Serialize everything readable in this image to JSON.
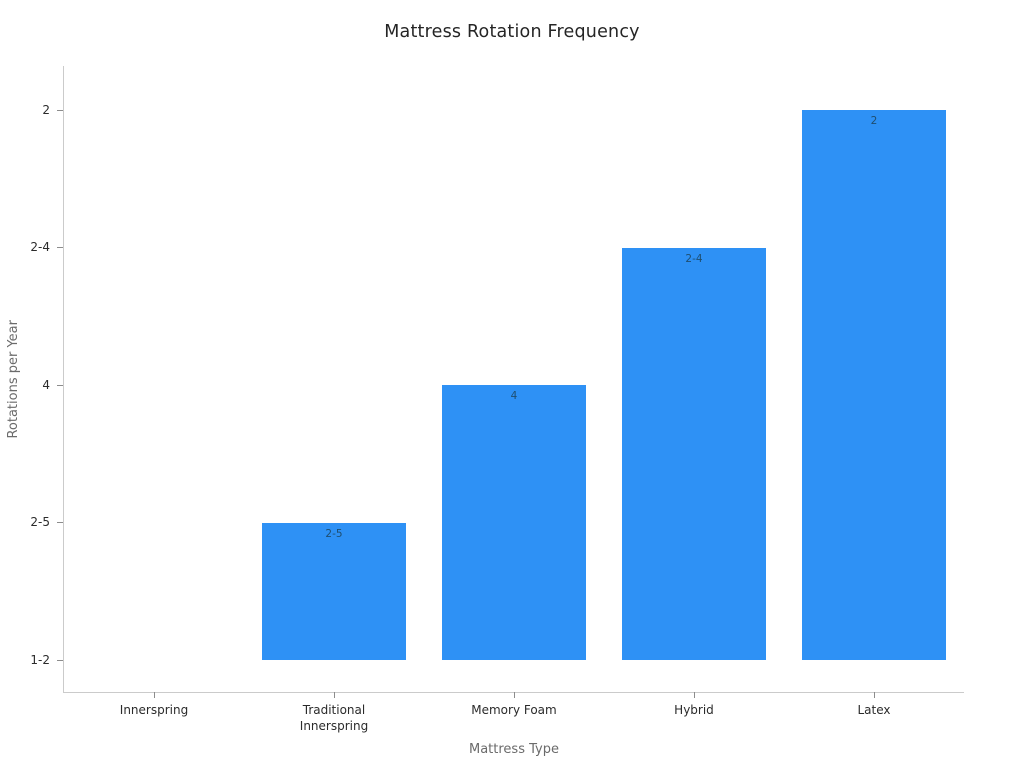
{
  "title": "Mattress Rotation Frequency",
  "chart_data": {
    "type": "bar",
    "title": "Mattress Rotation Frequency",
    "xlabel": "Mattress Type",
    "ylabel": "Rotations per Year",
    "categories": [
      "Innerspring",
      "Traditional\nInnerspring",
      "Memory Foam",
      "Hybrid",
      "Latex"
    ],
    "values": [
      "1-2",
      "2-5",
      "4",
      "2-4",
      "2"
    ],
    "y_axis_categories_bottom_to_top": [
      "1-2",
      "2-5",
      "4",
      "2-4",
      "2"
    ],
    "bar_value_labels_visible": [
      "2-5",
      "4",
      "2-4",
      "2"
    ],
    "bar_color": "#2e91f5",
    "bar_label_color": "#1f4e6f",
    "tick_label_color": "#2b2b2b",
    "axis_label_color": "#6b6b6b",
    "spine_color": "#cbcbcb",
    "background_color": "#ffffff",
    "grid": false,
    "legend": null,
    "bar_width_fraction": 0.8
  }
}
